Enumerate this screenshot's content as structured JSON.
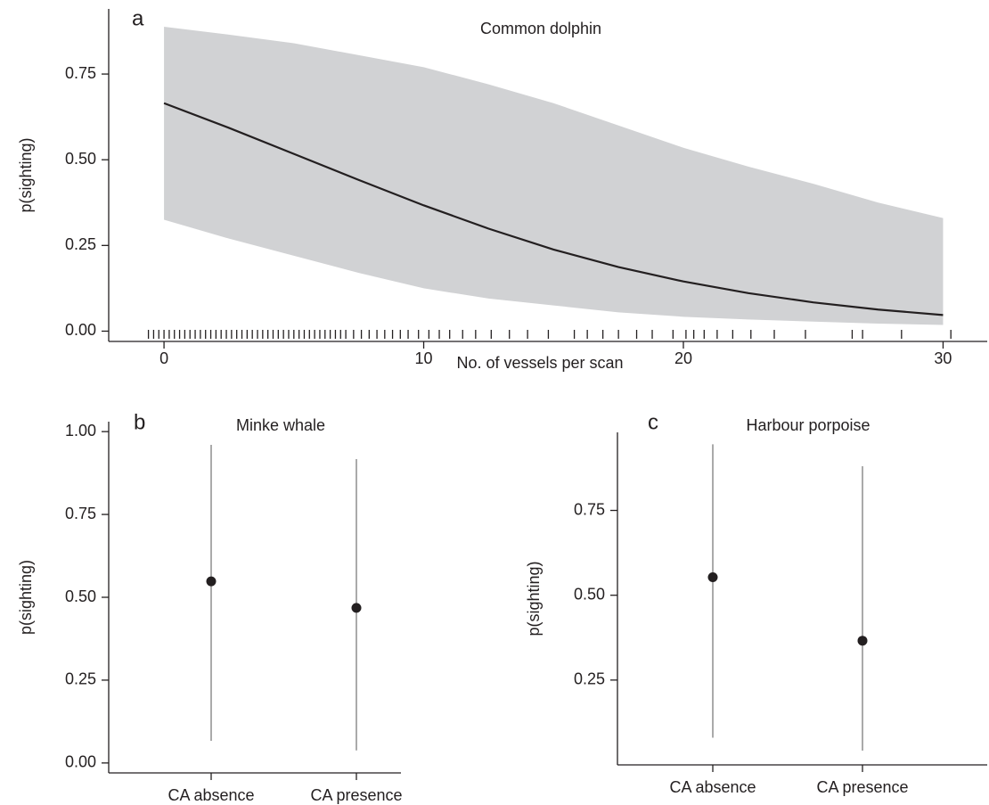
{
  "chart_data": [
    {
      "type": "ribbon-line",
      "panel": "a",
      "title": "Common dolphin",
      "x_label": "No. of vessels per scan",
      "y_label": "p(sighting)",
      "x": [
        0,
        2.5,
        5,
        7.5,
        10,
        12.5,
        15,
        17.5,
        20,
        22.5,
        25,
        27.5,
        30
      ],
      "values": [
        0.665,
        0.593,
        0.517,
        0.441,
        0.367,
        0.299,
        0.238,
        0.187,
        0.145,
        0.111,
        0.084,
        0.063,
        0.047
      ],
      "lower": [
        0.325,
        0.27,
        0.22,
        0.17,
        0.125,
        0.095,
        0.075,
        0.055,
        0.042,
        0.034,
        0.028,
        0.022,
        0.018
      ],
      "upper": [
        0.888,
        0.865,
        0.84,
        0.805,
        0.77,
        0.72,
        0.665,
        0.6,
        0.535,
        0.48,
        0.43,
        0.375,
        0.33
      ],
      "rug": [
        -0.6,
        -0.4,
        -0.2,
        0,
        0.2,
        0.4,
        0.6,
        0.8,
        1,
        1.2,
        1.4,
        1.6,
        1.8,
        2,
        2.2,
        2.4,
        2.6,
        2.8,
        3,
        3.2,
        3.4,
        3.6,
        3.8,
        4,
        4.2,
        4.4,
        4.6,
        4.8,
        5,
        5.2,
        5.4,
        5.6,
        5.8,
        6,
        6.2,
        6.4,
        6.6,
        6.8,
        7,
        7.3,
        7.6,
        7.9,
        8.2,
        8.5,
        8.8,
        9.1,
        9.4,
        9.8,
        10.2,
        10.6,
        11,
        11.5,
        12,
        12.6,
        13.3,
        14,
        14.8,
        15.8,
        16.3,
        16.9,
        17.5,
        18.2,
        18.8,
        19.6,
        20.1,
        20.4,
        20.8,
        21.3,
        21.9,
        22.6,
        23.5,
        24.7,
        26.5,
        26.9,
        28.4,
        30.3
      ],
      "color": "#231f20",
      "band_color": "#d1d2d4",
      "xlim": [
        -2.13,
        31.7
      ],
      "xticks": [
        0,
        10,
        20,
        30
      ],
      "ylim": [
        -0.03,
        0.94
      ],
      "yticks": [
        {
          "value": 0,
          "label": "0.00"
        },
        {
          "value": 0.25,
          "label": "0.25"
        },
        {
          "value": 0.5,
          "label": "0.50"
        },
        {
          "value": 0.75,
          "label": "0.75"
        }
      ]
    },
    {
      "type": "pointrange",
      "panel": "b",
      "title": "Minke whale",
      "y_label": "p(sighting)",
      "categories": [
        "CA absence",
        "CA presence"
      ],
      "values": [
        0.548,
        0.468
      ],
      "lower": [
        0.067,
        0.038
      ],
      "upper": [
        0.96,
        0.917
      ],
      "color": "#231f20",
      "bar_color": "#aaaaaa",
      "ylim": [
        -0.03,
        1.03
      ],
      "yticks": [
        {
          "value": 0,
          "label": "0.00"
        },
        {
          "value": 0.25,
          "label": "0.25"
        },
        {
          "value": 0.5,
          "label": "0.50"
        },
        {
          "value": 0.75,
          "label": "0.75"
        },
        {
          "value": 1,
          "label": "1.00"
        }
      ]
    },
    {
      "type": "pointrange",
      "panel": "c",
      "title": "Harbour porpoise",
      "y_label": "p(sighting)",
      "categories": [
        "CA absence",
        "CA presence"
      ],
      "values": [
        0.553,
        0.366
      ],
      "lower": [
        0.08,
        0.042
      ],
      "upper": [
        0.945,
        0.88
      ],
      "color": "#231f20",
      "bar_color": "#aaaaaa",
      "ylim": [
        0,
        0.98
      ],
      "yticks": [
        {
          "value": 0.25,
          "label": "0.25"
        },
        {
          "value": 0.5,
          "label": "0.50"
        },
        {
          "value": 0.75,
          "label": "0.75"
        }
      ]
    }
  ]
}
